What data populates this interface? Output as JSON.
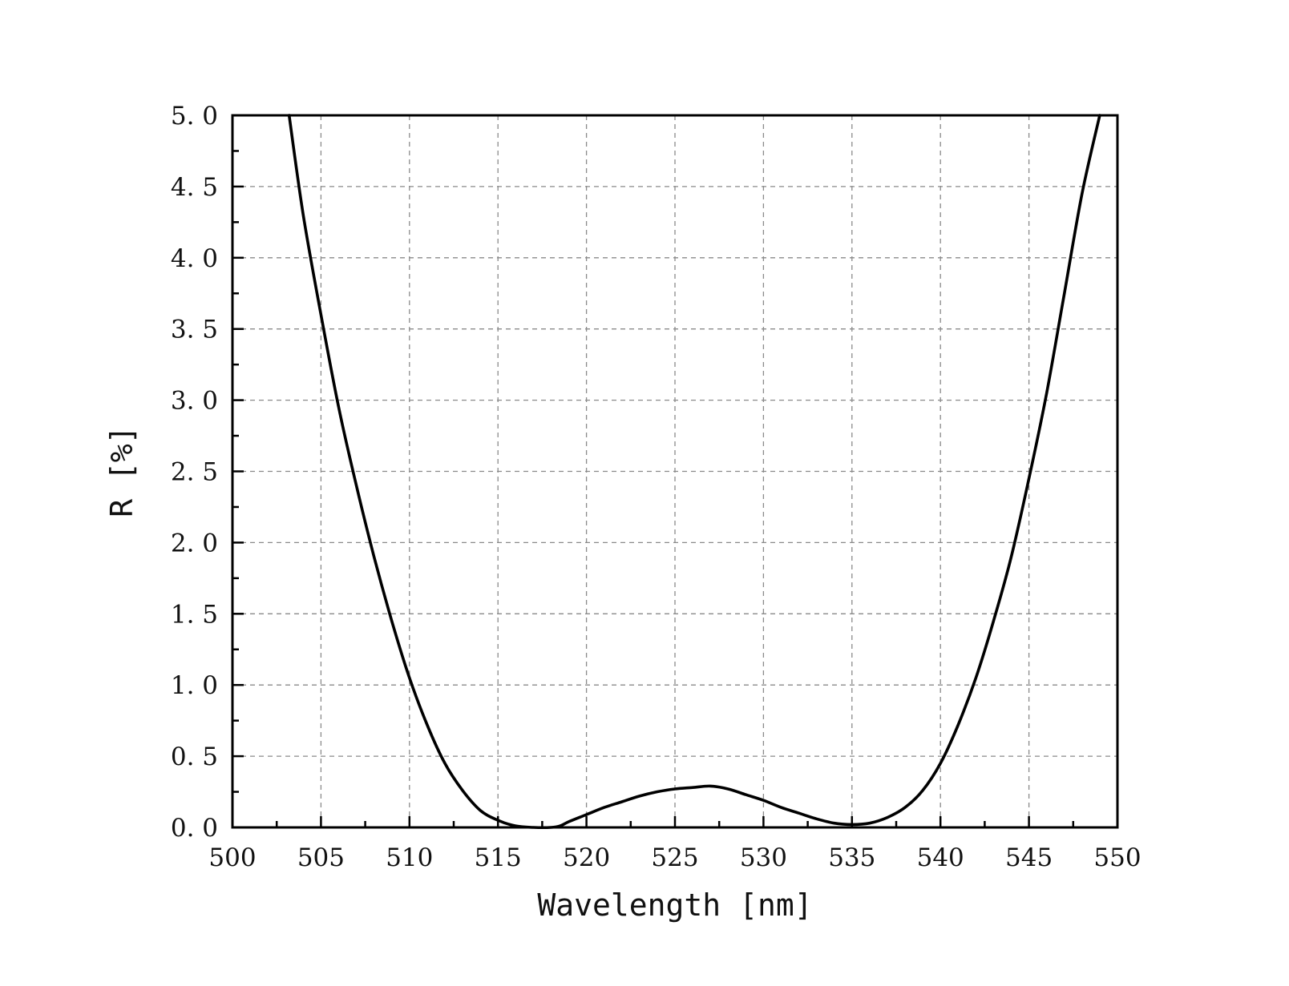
{
  "chart_data": {
    "type": "line",
    "title": "",
    "xlabel": "Wavelength [nm]",
    "ylabel": "R [%]",
    "xlim": [
      500,
      550
    ],
    "ylim": [
      0,
      5
    ],
    "grid": true,
    "x_ticks": [
      500,
      505,
      510,
      515,
      520,
      525,
      530,
      535,
      540,
      545,
      550
    ],
    "y_ticks": [
      "0.0",
      "0.5",
      "1.0",
      "1.5",
      "2.0",
      "2.5",
      "3.0",
      "3.5",
      "4.0",
      "4.5",
      "5.0"
    ],
    "line_color": "#000000",
    "series": [
      {
        "x": [
          503.2,
          504.0,
          505.0,
          506.0,
          507.0,
          508.0,
          509.0,
          510.0,
          511.0,
          512.0,
          513.0,
          514.0,
          515.0,
          516.0,
          517.0,
          518.0,
          518.5,
          519.0,
          520.0,
          521.0,
          522.0,
          523.0,
          524.0,
          525.0,
          526.0,
          527.0,
          528.0,
          529.0,
          530.0,
          531.0,
          532.0,
          533.0,
          534.0,
          535.0,
          536.0,
          537.0,
          538.0,
          539.0,
          540.0,
          541.0,
          542.0,
          543.0,
          544.0,
          545.0,
          546.0,
          547.0,
          548.0,
          549.0
        ],
        "y": [
          5.0,
          4.3,
          3.6,
          2.95,
          2.4,
          1.9,
          1.45,
          1.05,
          0.72,
          0.45,
          0.26,
          0.12,
          0.05,
          0.01,
          0.0,
          0.0,
          0.01,
          0.04,
          0.09,
          0.14,
          0.18,
          0.22,
          0.25,
          0.27,
          0.28,
          0.29,
          0.27,
          0.23,
          0.19,
          0.14,
          0.1,
          0.06,
          0.03,
          0.02,
          0.03,
          0.07,
          0.14,
          0.26,
          0.45,
          0.72,
          1.05,
          1.45,
          1.9,
          2.45,
          3.05,
          3.75,
          4.45,
          5.0
        ]
      }
    ]
  }
}
